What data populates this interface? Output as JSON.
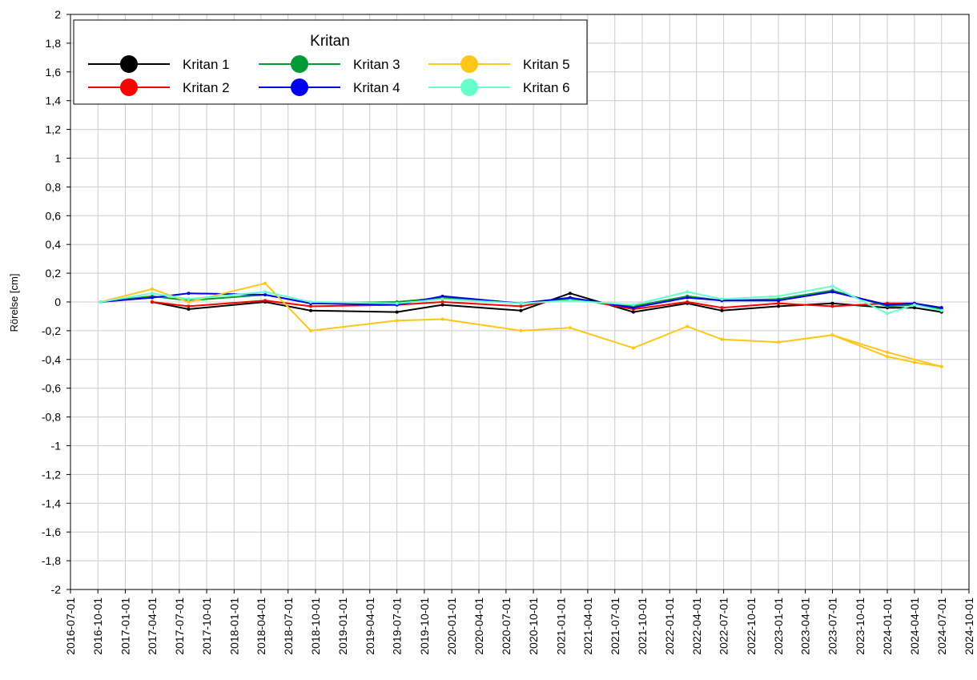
{
  "chart_data": {
    "type": "line",
    "title": "",
    "xlabel": "",
    "ylabel": "Rörelse [cm]",
    "ylim": [
      -2,
      2
    ],
    "xlim": [
      "2016-07-01",
      "2024-10-01"
    ],
    "grid": true,
    "legend": {
      "title": "Kritan",
      "placement": "top-left"
    },
    "y_ticks": [
      "2",
      "1,8",
      "1,6",
      "1,4",
      "1,2",
      "1",
      "0,8",
      "0,6",
      "0,4",
      "0,2",
      "0",
      "-0,2",
      "-0,4",
      "-0,6",
      "-0,8",
      "-1",
      "-1,2",
      "-1,4",
      "-1,6",
      "-1,8",
      "-2"
    ],
    "x_ticks": [
      "2016-07-01",
      "2016-10-01",
      "2017-01-01",
      "2017-04-01",
      "2017-07-01",
      "2017-10-01",
      "2018-01-01",
      "2018-04-01",
      "2018-07-01",
      "2018-10-01",
      "2019-01-01",
      "2019-04-01",
      "2019-07-01",
      "2019-10-01",
      "2020-01-01",
      "2020-04-01",
      "2020-07-01",
      "2020-10-01",
      "2021-01-01",
      "2021-04-01",
      "2021-07-01",
      "2021-10-01",
      "2022-01-01",
      "2022-04-01",
      "2022-07-01",
      "2022-10-01",
      "2023-01-01",
      "2023-04-01",
      "2023-07-01",
      "2023-10-01",
      "2024-01-01",
      "2024-04-01",
      "2024-07-01",
      "2024-10-01"
    ],
    "series": [
      {
        "name": "Kritan 1",
        "color": "#000000",
        "x": [
          "2017-04-01",
          "2017-08-01",
          "2018-04-15",
          "2018-09-15",
          "2019-07-01",
          "2019-12-01",
          "2020-08-20",
          "2021-02-01",
          "2021-09-01",
          "2022-03-01",
          "2022-06-25",
          "2023-01-01",
          "2023-07-01",
          "2024-01-01",
          "2024-04-01",
          "2024-07-01"
        ],
        "y": [
          0,
          -0.05,
          0,
          -0.06,
          -0.07,
          -0.02,
          -0.06,
          0.06,
          -0.07,
          -0.01,
          -0.06,
          -0.03,
          -0.01,
          -0.04,
          -0.04,
          -0.07
        ]
      },
      {
        "name": "Kritan 2",
        "color": "#ff0000",
        "x": [
          "2017-04-01",
          "2017-08-01",
          "2018-04-15",
          "2018-09-15",
          "2019-07-01",
          "2019-12-01",
          "2020-08-20",
          "2021-02-01",
          "2021-09-01",
          "2022-03-01",
          "2022-06-25",
          "2023-01-01",
          "2023-07-01",
          "2024-01-01",
          "2024-04-01",
          "2024-07-01"
        ],
        "y": [
          0,
          -0.03,
          0.01,
          -0.03,
          -0.02,
          0,
          -0.03,
          0.03,
          -0.05,
          0,
          -0.04,
          -0.01,
          -0.03,
          -0.01,
          -0.01,
          -0.04
        ]
      },
      {
        "name": "Kritan 3",
        "color": "#009933",
        "x": [
          "2016-10-10",
          "2017-04-01",
          "2017-08-01",
          "2018-04-15",
          "2018-09-15",
          "2019-07-01",
          "2019-12-01",
          "2020-08-20",
          "2021-02-01",
          "2021-09-01",
          "2022-03-01",
          "2022-06-25",
          "2023-01-01",
          "2023-07-01",
          "2024-01-01",
          "2024-04-01",
          "2024-07-01"
        ],
        "y": [
          0,
          0.04,
          0.01,
          0.05,
          -0.01,
          0,
          0.03,
          -0.01,
          0.02,
          -0.03,
          0.04,
          0.01,
          0.02,
          0.08,
          -0.03,
          -0.02,
          -0.05
        ]
      },
      {
        "name": "Kritan 4",
        "color": "#0000ee",
        "x": [
          "2016-10-10",
          "2017-04-01",
          "2017-08-01",
          "2018-04-15",
          "2018-09-15",
          "2019-07-01",
          "2019-12-01",
          "2020-08-20",
          "2021-02-01",
          "2021-09-01",
          "2022-03-01",
          "2022-06-25",
          "2023-01-01",
          "2023-07-01",
          "2024-01-01",
          "2024-04-01",
          "2024-07-01"
        ],
        "y": [
          0,
          0.03,
          0.06,
          0.05,
          -0.01,
          -0.02,
          0.04,
          -0.01,
          0.03,
          -0.04,
          0.03,
          0.01,
          0.01,
          0.07,
          -0.02,
          -0.01,
          -0.04
        ]
      },
      {
        "name": "Kritan 5",
        "color": "#ffc61a",
        "x": [
          "2016-10-10",
          "2017-04-01",
          "2017-08-01",
          "2018-04-15",
          "2018-09-15",
          "2019-07-01",
          "2019-12-01",
          "2020-08-20",
          "2021-02-01",
          "2021-09-01",
          "2022-03-01",
          "2022-06-25",
          "2023-01-01",
          "2023-07-01",
          "2024-01-01",
          "2024-04-01",
          "2024-07-01"
        ],
        "y": [
          0,
          0.09,
          0,
          0.13,
          -0.2,
          -0.13,
          -0.12,
          -0.2,
          -0.18,
          -0.32,
          -0.17,
          -0.26,
          -0.28,
          -0.23,
          -0.38,
          -0.42,
          -0.45
        ]
      },
      {
        "name": "Kritan 6",
        "color": "#66ffcc",
        "x": [
          "2016-10-10",
          "2017-04-01",
          "2017-08-01",
          "2018-04-15",
          "2018-09-15",
          "2019-07-01",
          "2019-12-01",
          "2020-08-20",
          "2021-02-01",
          "2021-09-01",
          "2022-03-01",
          "2022-06-25",
          "2023-01-01",
          "2023-07-01",
          "2024-01-01",
          "2024-04-01",
          "2024-07-01"
        ],
        "y": [
          0,
          0.06,
          0.02,
          0.07,
          0,
          -0.01,
          0.02,
          -0.01,
          0.01,
          -0.02,
          0.07,
          0.02,
          0.04,
          0.11,
          -0.08,
          -0.02,
          -0.06
        ]
      },
      {
        "name": "",
        "color": "#ffc61a",
        "x": [
          "2023-07-01",
          "2024-01-01",
          "2024-07-01"
        ],
        "y": [
          -0.23,
          -0.35,
          -0.45
        ]
      }
    ]
  }
}
